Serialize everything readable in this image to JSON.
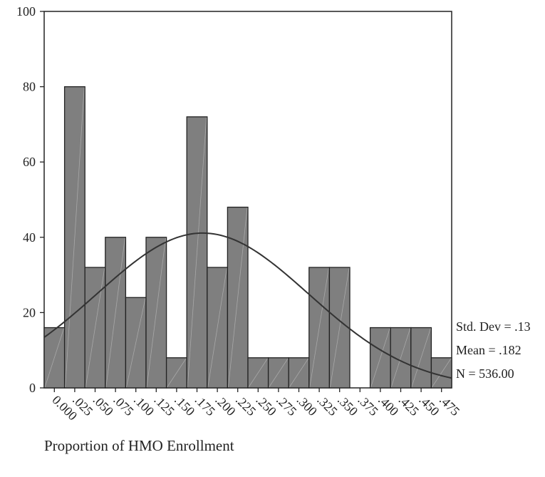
{
  "chart_data": {
    "type": "bar",
    "title": "",
    "xlabel": "Proportion of HMO Enrollment",
    "ylabel": "",
    "ylim": [
      0,
      100
    ],
    "y_ticks": [
      0,
      20,
      40,
      60,
      80,
      100
    ],
    "categories": [
      "0.000",
      ".025",
      ".050",
      ".075",
      ".100",
      ".125",
      ".150",
      ".175",
      ".200",
      ".225",
      ".250",
      ".275",
      ".300",
      ".325",
      ".350",
      ".375",
      ".400",
      ".425",
      ".450",
      ".475"
    ],
    "values": [
      16,
      80,
      32,
      40,
      24,
      40,
      8,
      72,
      32,
      48,
      8,
      8,
      8,
      32,
      32,
      0,
      16,
      16,
      16,
      8
    ],
    "normal_curve": {
      "mean": 0.182,
      "std_dev": 0.13,
      "n": 536
    },
    "stats": {
      "std_dev": "Std. Dev = .13",
      "mean": "Mean = .182",
      "n": "N = 536.00"
    },
    "grid": false,
    "bar_color": "#7f7f7f",
    "curve_color": "#333333"
  }
}
